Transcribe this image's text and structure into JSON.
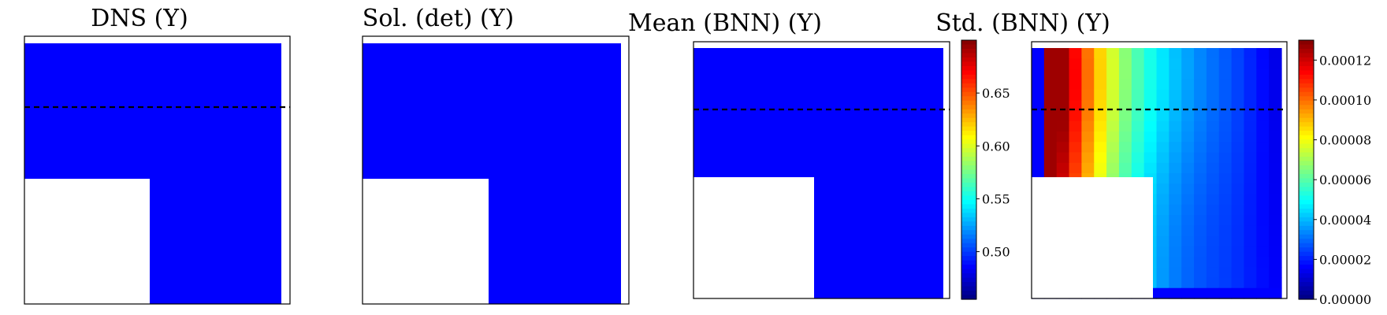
{
  "chart_data": [
    {
      "type": "heatmap",
      "title": "DNS (Y)",
      "field": "uniform",
      "fill_color": "#0000ff",
      "masked_region": "bottom-left square",
      "dashed_line": true
    },
    {
      "type": "heatmap",
      "title": "Sol. (det) (Y)",
      "field": "uniform",
      "fill_color": "#0000ff",
      "masked_region": "bottom-left square",
      "dashed_line": false
    },
    {
      "type": "heatmap",
      "title": "Mean (BNN) (Y)",
      "field": "uniform",
      "fill_color": "#0000ff",
      "masked_region": "bottom-left square",
      "dashed_line": true,
      "colorbar": {
        "colormap": "jet",
        "vmin": 0.455,
        "vmax": 0.7,
        "ticks": [
          0.5,
          0.55,
          0.6,
          0.65
        ],
        "tick_labels": [
          "0.50",
          "0.55",
          "0.60",
          "0.65"
        ]
      }
    },
    {
      "type": "heatmap",
      "title": "Std. (BNN) (Y)",
      "field": "gradient",
      "masked_region": "bottom-left square",
      "dashed_line": true,
      "colorbar": {
        "colormap": "jet",
        "vmin": 0.0,
        "vmax": 0.00013,
        "ticks": [
          0.0,
          2e-05,
          4e-05,
          6e-05,
          8e-05,
          0.0001,
          0.00012
        ],
        "tick_labels": [
          "0.00000",
          "0.00002",
          "0.00004",
          "0.00006",
          "0.00008",
          "0.00010",
          "0.00012"
        ]
      }
    }
  ]
}
